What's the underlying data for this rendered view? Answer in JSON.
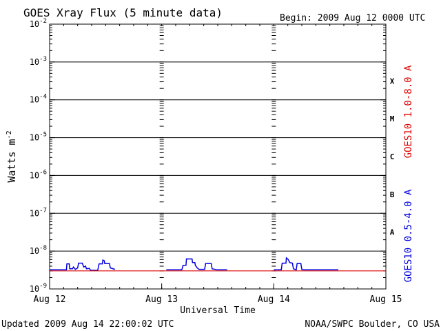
{
  "title": "GOES Xray Flux (5 minute data)",
  "begin_label": "Begin:  2009 Aug 12 0000 UTC",
  "updated_label": "Updated 2009 Aug 14 22:00:02 UTC",
  "credit_label": "NOAA/SWPC Boulder, CO USA",
  "chart_data": {
    "type": "line",
    "y_scale": "log",
    "ylabel": "Watts m",
    "ylabel_sup": "-2",
    "xlabel": "Universal Time",
    "x_range_hours": [
      0,
      72
    ],
    "y_range": [
      1e-09,
      0.01
    ],
    "grid": true,
    "x_ticks": [
      {
        "hour": 0,
        "label": "Aug 12"
      },
      {
        "hour": 24,
        "label": "Aug 13"
      },
      {
        "hour": 48,
        "label": "Aug 14"
      },
      {
        "hour": 72,
        "label": "Aug 15"
      }
    ],
    "y_ticks": [
      {
        "value": 1e-09,
        "base": "10",
        "exp": "-9"
      },
      {
        "value": 1e-08,
        "base": "10",
        "exp": "-8"
      },
      {
        "value": 1e-07,
        "base": "10",
        "exp": "-7"
      },
      {
        "value": 1e-06,
        "base": "10",
        "exp": "-6"
      },
      {
        "value": 1e-05,
        "base": "10",
        "exp": "-5"
      },
      {
        "value": 0.0001,
        "base": "10",
        "exp": "-4"
      },
      {
        "value": 0.001,
        "base": "10",
        "exp": "-3"
      },
      {
        "value": 0.01,
        "base": "10",
        "exp": "-2"
      }
    ],
    "flare_classes": [
      {
        "label": "X",
        "value": 0.000316
      },
      {
        "label": "M",
        "value": 3.16e-05
      },
      {
        "label": "C",
        "value": 3.16e-06
      },
      {
        "label": "B",
        "value": 3.16e-07
      },
      {
        "label": "A",
        "value": 3.16e-08
      }
    ],
    "series": [
      {
        "name": "GOES10 1.0-8.0 A",
        "color": "#dd0000",
        "points": [
          [
            0,
            3e-09
          ],
          [
            13,
            3e-09
          ],
          [
            13.5,
            3e-09
          ],
          [
            24,
            3e-09
          ],
          [
            37,
            3e-09
          ],
          [
            37.5,
            3e-09
          ],
          [
            48,
            3e-09
          ],
          [
            61,
            3e-09
          ],
          [
            61.5,
            3e-09
          ],
          [
            72,
            3e-09
          ]
        ]
      },
      {
        "name": "GOES10 0.5-4.0 A",
        "color": "#0000dd",
        "segments": [
          [
            [
              0,
              3.2e-09
            ],
            [
              3.6,
              3.2e-09
            ],
            [
              3.7,
              4.6e-09
            ],
            [
              4.2,
              4.6e-09
            ],
            [
              4.3,
              3.4e-09
            ],
            [
              4.9,
              3.4e-09
            ],
            [
              5.1,
              3.8e-09
            ],
            [
              5.5,
              3.3e-09
            ],
            [
              6.0,
              3.6e-09
            ],
            [
              6.2,
              4.8e-09
            ],
            [
              7.0,
              4.8e-09
            ],
            [
              7.3,
              3.8e-09
            ],
            [
              7.7,
              4e-09
            ],
            [
              7.9,
              3.4e-09
            ],
            [
              8.5,
              3.5e-09
            ],
            [
              8.8,
              3.1e-09
            ],
            [
              10.3,
              3.1e-09
            ],
            [
              10.6,
              4.6e-09
            ],
            [
              11.3,
              4.6e-09
            ],
            [
              11.4,
              5.8e-09
            ],
            [
              11.7,
              5.6e-09
            ],
            [
              11.8,
              4.7e-09
            ],
            [
              12.8,
              4.7e-09
            ],
            [
              13.0,
              3.6e-09
            ],
            [
              14.0,
              3.3e-09
            ]
          ],
          [
            [
              25,
              3.2e-09
            ],
            [
              28.3,
              3.2e-09
            ],
            [
              28.6,
              4.2e-09
            ],
            [
              29.2,
              4.2e-09
            ],
            [
              29.3,
              6.2e-09
            ],
            [
              30.5,
              6.2e-09
            ],
            [
              30.6,
              5e-09
            ],
            [
              31.1,
              5e-09
            ],
            [
              31.2,
              4.2e-09
            ],
            [
              31.6,
              3.6e-09
            ],
            [
              32.0,
              3.3e-09
            ],
            [
              33.2,
              3.3e-09
            ],
            [
              33.4,
              4.7e-09
            ],
            [
              34.6,
              4.7e-09
            ],
            [
              34.8,
              3.4e-09
            ],
            [
              36.0,
              3.2e-09
            ],
            [
              38.0,
              3.2e-09
            ]
          ],
          [
            [
              48,
              3.2e-09
            ],
            [
              49.6,
              3.2e-09
            ],
            [
              49.8,
              4.8e-09
            ],
            [
              50.6,
              4.8e-09
            ],
            [
              50.7,
              6.6e-09
            ],
            [
              51.1,
              6e-09
            ],
            [
              51.4,
              5e-09
            ],
            [
              52.0,
              4.8e-09
            ],
            [
              52.2,
              3.4e-09
            ],
            [
              52.8,
              3.2e-09
            ],
            [
              53.0,
              4.7e-09
            ],
            [
              53.8,
              4.7e-09
            ],
            [
              54.0,
              3.3e-09
            ],
            [
              54.5,
              3.2e-09
            ],
            [
              61.8,
              3.2e-09
            ]
          ]
        ]
      }
    ]
  }
}
